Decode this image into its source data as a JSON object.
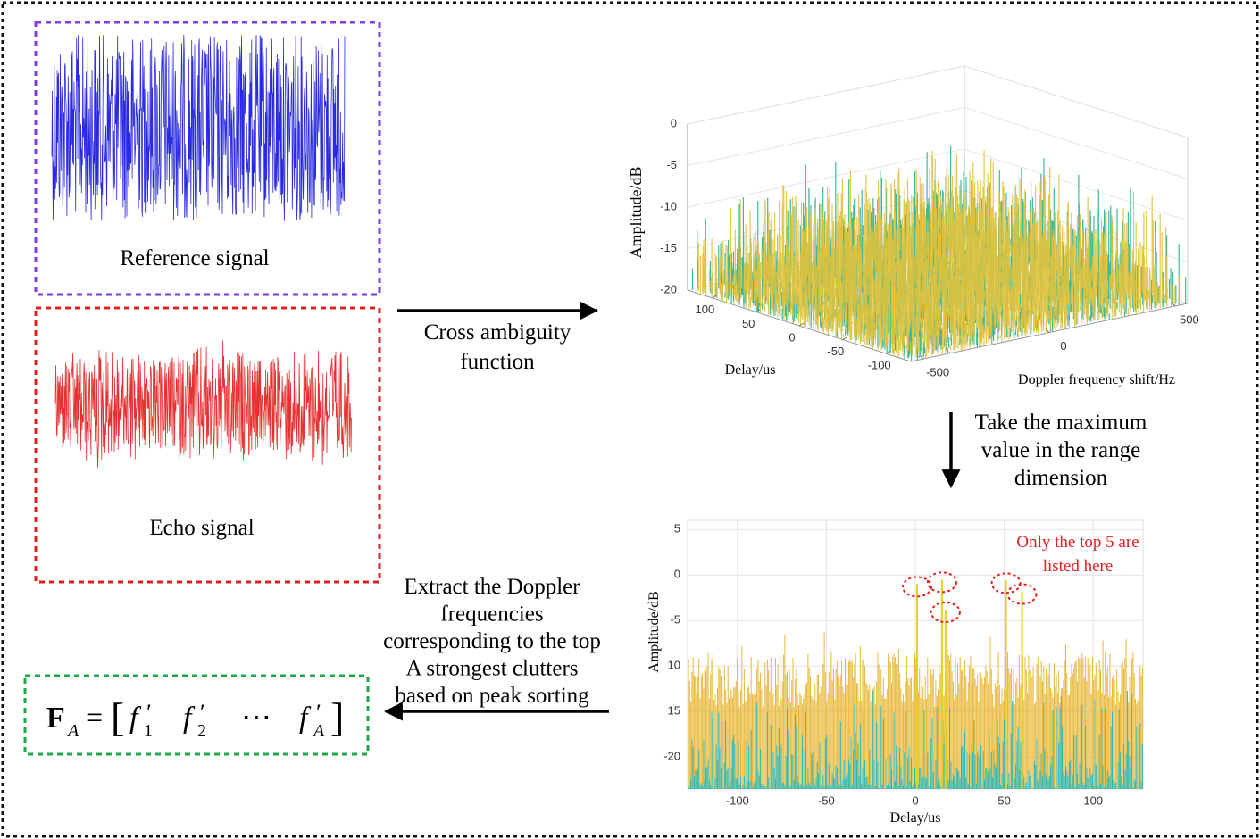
{
  "reference_label": "Reference signal",
  "echo_label": "Echo signal",
  "step1_label": [
    "Cross ambiguity",
    "function"
  ],
  "step2_label": [
    "Take the maximum",
    "value in the range",
    "dimension"
  ],
  "step3_label": [
    "Extract the Doppler",
    "frequencies",
    "corresponding to the top",
    "A strongest clutters",
    "based on peak sorting"
  ],
  "formula": {
    "lhs": "F",
    "lhs_sub": "A",
    "eq": "=",
    "open": "[",
    "close": "]",
    "terms": [
      {
        "base": "f",
        "mark": "′",
        "sub": "1"
      },
      {
        "base": "f",
        "mark": "′",
        "sub": "2"
      },
      {
        "base": "⋯"
      },
      {
        "base": "f",
        "mark": "′",
        "sub": "A"
      }
    ]
  },
  "surface_plot": {
    "zlabel": "Amplitude/dB",
    "xlabel": "Delay/us",
    "ylabel": "Doppler frequency shift/Hz",
    "zlim": [
      -20,
      0
    ],
    "zticks": [
      0,
      -5,
      -10,
      -15,
      -20
    ],
    "xlim": [
      -128,
      128
    ],
    "xticks": [
      100,
      50,
      0,
      -50,
      -100
    ],
    "ylim": [
      -550,
      550
    ],
    "yticks": [
      500,
      0,
      -500
    ],
    "grid": true
  },
  "chart_data": {
    "type": "line",
    "xlabel": "Delay/us",
    "ylabel": "Amplitude/dB",
    "annotation": [
      "Only the top 5 are",
      "listed here"
    ],
    "xlim": [
      -128,
      128
    ],
    "xticks": [
      -100,
      -50,
      0,
      50,
      100
    ],
    "ylim": [
      -23.5,
      6
    ],
    "yticks": [
      5,
      0,
      -5,
      {
        "value": -10,
        "label": "10"
      },
      {
        "value": -15,
        "label": "15"
      },
      -20
    ],
    "grid": true,
    "color": "#e6d21c",
    "x": [
      1,
      15,
      17,
      51,
      60
    ],
    "values": [
      -1,
      -0.5,
      -3.8,
      -0.6,
      -1.8
    ]
  }
}
